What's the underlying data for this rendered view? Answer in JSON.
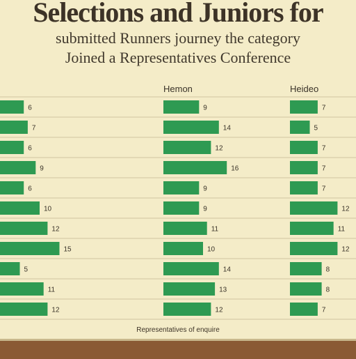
{
  "chart_data": {
    "type": "bar",
    "orientation": "horizontal",
    "title": "Selections and Juniors for",
    "subtitle_line1": "submitted Runners journey the category",
    "subtitle_line2": "Joined a Representatives Conference",
    "panels": [
      {
        "header": "",
        "values": [
          6,
          7,
          6,
          9,
          6,
          10,
          12,
          15,
          5,
          11,
          12
        ],
        "value_labels": [
          "6",
          "7",
          "6",
          "9",
          "6",
          "10",
          "12",
          "15",
          "5",
          "11",
          "12"
        ]
      },
      {
        "header": "Hemon",
        "values": [
          9,
          14,
          12,
          16,
          9,
          9,
          11,
          10,
          14,
          13,
          12
        ],
        "value_labels": [
          "9",
          "14",
          "12",
          "16",
          "9",
          "9",
          "11",
          "10",
          "14",
          "13",
          "12"
        ]
      },
      {
        "header": "Heideo",
        "values": [
          7,
          5,
          7,
          7,
          7,
          12,
          11,
          12,
          8,
          8,
          7
        ],
        "value_labels": [
          "7",
          "5",
          "7",
          "7",
          "7",
          "12",
          "11",
          "12",
          "8",
          "8",
          "7"
        ]
      }
    ],
    "footnote": "Representatives of enquire",
    "grid": true,
    "bar_color": "#2e9a52"
  },
  "colors": {
    "background": "#f4ecc8",
    "bar": "#2e9a52",
    "grid": "#cfc3a0",
    "footer_band": "#8a5a34"
  }
}
